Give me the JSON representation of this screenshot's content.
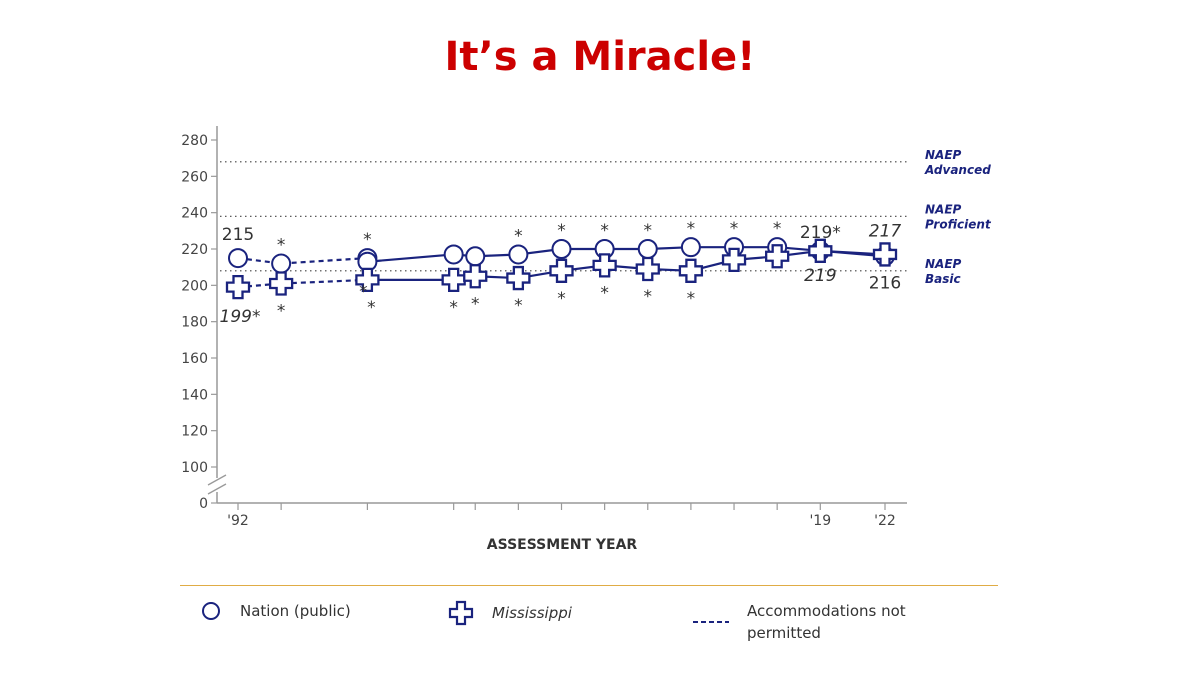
{
  "title": "It’s a Miracle!",
  "chart_data": {
    "type": "line",
    "xlabel": "ASSESSMENT YEAR",
    "ylabel": "",
    "x_tick_labels": [
      "'92",
      "'19",
      "'22"
    ],
    "x_tick_years": [
      1992,
      2019,
      2022
    ],
    "y_ticks": [
      0,
      100,
      120,
      140,
      160,
      180,
      200,
      220,
      240,
      260,
      280
    ],
    "ylim": [
      0,
      280
    ],
    "x": [
      1992,
      1994,
      1998,
      2002,
      2003,
      2005,
      2007,
      2009,
      2011,
      2013,
      2015,
      2017,
      2019,
      2022
    ],
    "reference_lines": [
      {
        "name": "NAEP Advanced",
        "line1": "NAEP",
        "line2": "Advanced",
        "value": 268
      },
      {
        "name": "NAEP Proficient",
        "line1": "NAEP",
        "line2": "Proficient",
        "value": 238
      },
      {
        "name": "NAEP Basic",
        "line1": "NAEP",
        "line2": "Basic",
        "value": 208
      }
    ],
    "series": [
      {
        "name": "Nation (public)",
        "marker": "circle",
        "segments": [
          {
            "style": "dashed",
            "x": [
              1992,
              1994,
              1998
            ],
            "values": [
              215,
              212,
              215
            ]
          },
          {
            "style": "solid",
            "x": [
              1998,
              2002,
              2003,
              2005,
              2007,
              2009,
              2011,
              2013,
              2015,
              2017,
              2019,
              2022
            ],
            "values": [
              213,
              217,
              216,
              217,
              220,
              220,
              220,
              221,
              221,
              221,
              219,
              216
            ]
          }
        ],
        "significance_marks": [
          1994,
          1998,
          2005,
          2007,
          2009,
          2011,
          2013,
          2015,
          2017
        ]
      },
      {
        "name": "Mississippi",
        "marker": "cross",
        "segments": [
          {
            "style": "dashed",
            "x": [
              1992,
              1994,
              1998
            ],
            "values": [
              199,
              201,
              203
            ]
          },
          {
            "style": "solid",
            "x": [
              1998,
              2002,
              2003,
              2005,
              2007,
              2009,
              2011,
              2013,
              2015,
              2017,
              2019,
              2022
            ],
            "values": [
              203,
              203,
              205,
              204,
              208,
              211,
              209,
              208,
              214,
              216,
              219,
              217
            ]
          }
        ],
        "significance_marks": [
          1994,
          1998,
          2002,
          2003,
          2005,
          2007,
          2009,
          2011,
          2013
        ]
      }
    ],
    "annotations": [
      {
        "text": "215",
        "series": "Nation (public)",
        "year": 1992,
        "italic": false
      },
      {
        "text": "199*",
        "series": "Mississippi",
        "year": 1992,
        "italic": true
      },
      {
        "text": "*",
        "series": "Nation (public)",
        "year": 1998,
        "italic": false
      },
      {
        "text": "219*",
        "series": "Nation (public)",
        "year": 2019,
        "italic": false
      },
      {
        "text": "219",
        "series": "Mississippi",
        "year": 2019,
        "italic": true
      },
      {
        "text": "217",
        "series": "Mississippi",
        "year": 2022,
        "italic": true
      },
      {
        "text": "216",
        "series": "Nation (public)",
        "year": 2022,
        "italic": false
      }
    ]
  },
  "legend": {
    "nation_label": "Nation (public)",
    "state_label": "Mississippi",
    "accommodations_label": "Accommodations not permitted"
  },
  "colors": {
    "title": "#cc0000",
    "series": "#1a237e",
    "reference_text": "#1a237e",
    "axis": "#999999",
    "text": "#333333",
    "divider": "#e0ac45"
  }
}
